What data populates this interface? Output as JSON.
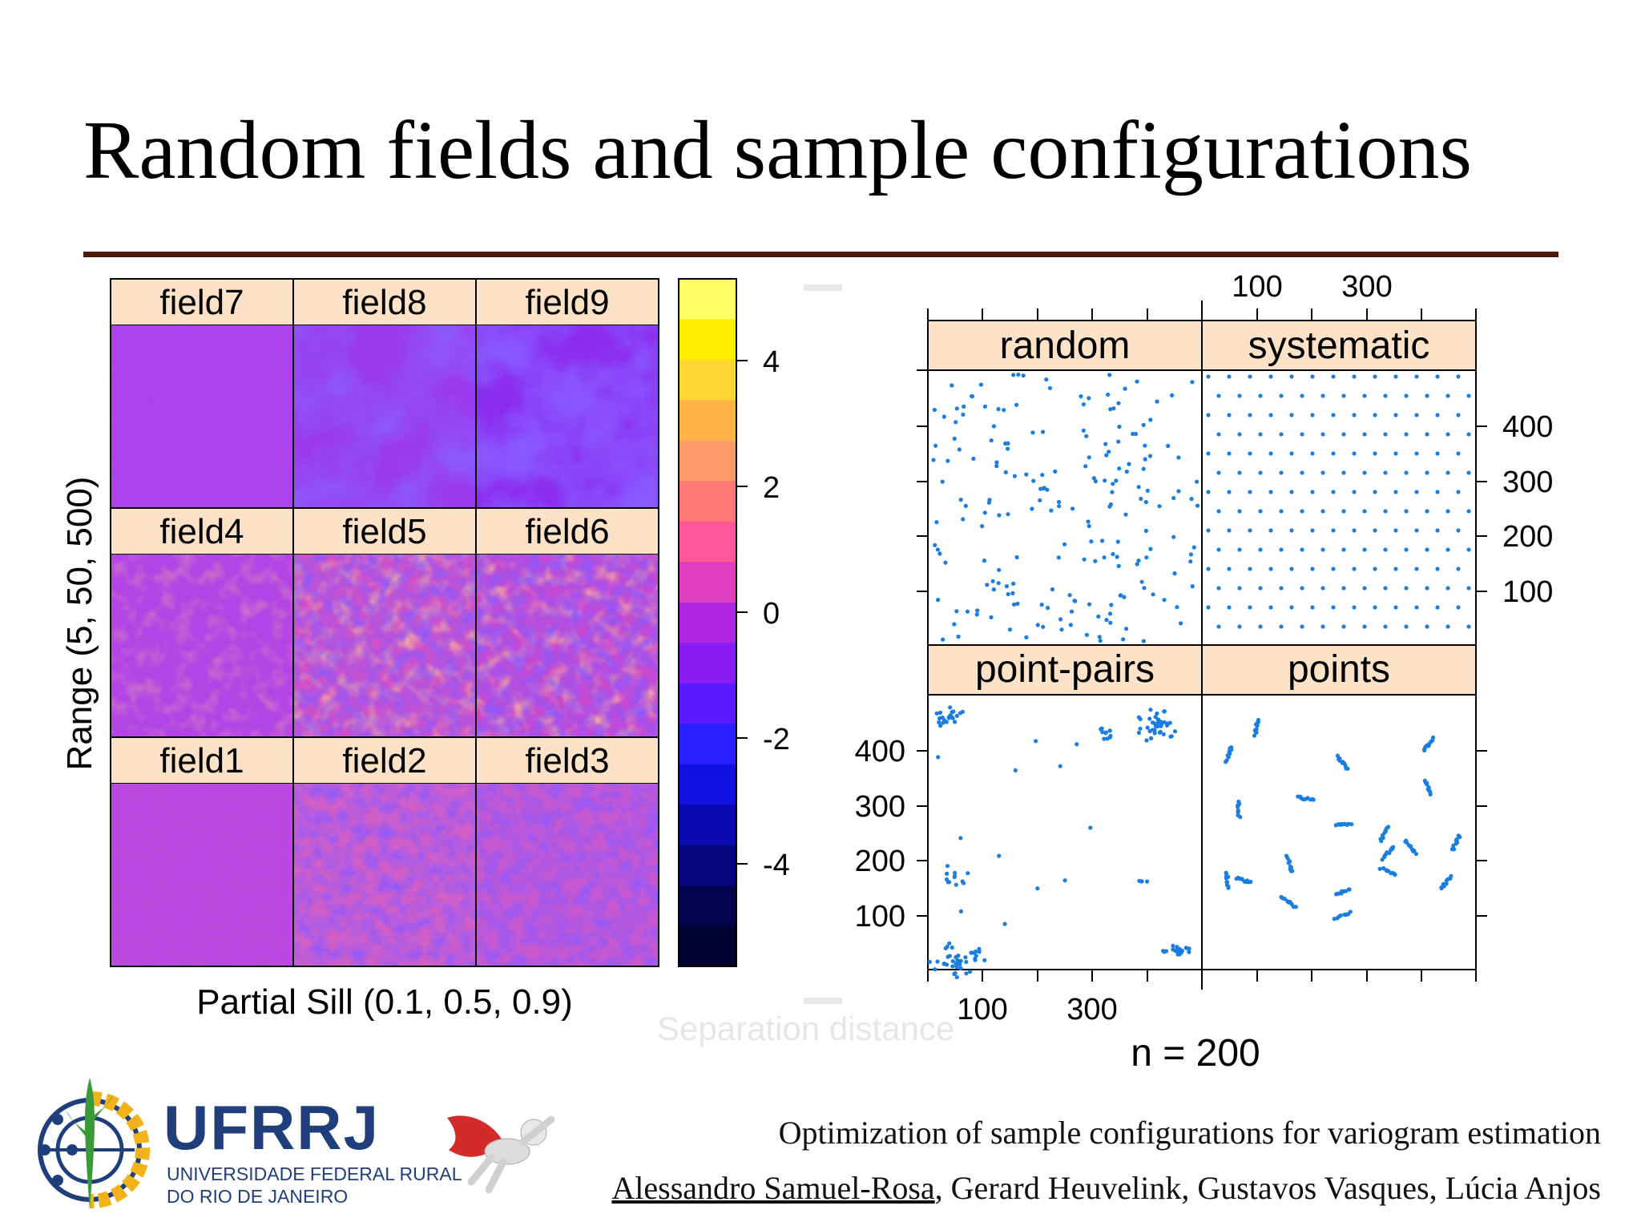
{
  "slide": {
    "title": "Random fields and sample configurations"
  },
  "left_panel": {
    "strip_labels": [
      [
        "field7",
        "field8",
        "field9"
      ],
      [
        "field4",
        "field5",
        "field6"
      ],
      [
        "field1",
        "field2",
        "field3"
      ]
    ],
    "y_label": "Range (5, 50, 500)",
    "x_label": "Partial Sill (0.1, 0.5, 0.9)",
    "colorbar_ticks": [
      "4",
      "2",
      "0",
      "-2",
      "-4"
    ],
    "colorbar_colors": [
      "#ffff66",
      "#ffee00",
      "#ffd633",
      "#ffb347",
      "#ff9966",
      "#ff7777",
      "#ff5599",
      "#e040c0",
      "#b026e0",
      "#8a1cf5",
      "#5b1aff",
      "#2a20ff",
      "#1010e0",
      "#0a0ab0",
      "#060680",
      "#030350",
      "#020230"
    ]
  },
  "ghost_text": {
    "separation": "Separation distance"
  },
  "right_panel": {
    "strip_labels": [
      "random",
      "systematic",
      "point-pairs",
      "points"
    ],
    "top_axis_ticks": [
      "100",
      "300"
    ],
    "right_axis_ticks": [
      "400",
      "300",
      "200",
      "100"
    ],
    "left_axis_ticks": [
      "400",
      "300",
      "200",
      "100"
    ],
    "bottom_axis_ticks": [
      "100",
      "300"
    ],
    "caption": "n = 200",
    "point_color": "#1a7ee0"
  },
  "logo": {
    "name": "UFRRJ",
    "subtitle_line1": "UNIVERSIDADE FEDERAL RURAL",
    "subtitle_line2": "DO RIO DE JANEIRO"
  },
  "footer": {
    "talk_title": "Optimization of sample configurations for variogram estimation",
    "presenter": "Alessandro Samuel-Rosa",
    "coauthors": ", Gerard Heuvelink, Gustavos Vasques, Lúcia Anjos"
  }
}
